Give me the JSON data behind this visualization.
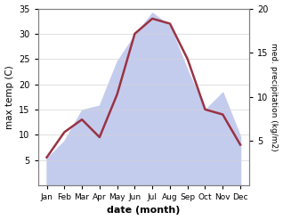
{
  "months": [
    "Jan",
    "Feb",
    "Mar",
    "Apr",
    "May",
    "Jun",
    "Jul",
    "Aug",
    "Sep",
    "Oct",
    "Nov",
    "Dec"
  ],
  "max_temp": [
    5.5,
    10.5,
    13.0,
    9.5,
    18.0,
    30.0,
    33.0,
    32.0,
    25.0,
    15.0,
    14.0,
    8.0
  ],
  "precipitation": [
    3.0,
    5.0,
    8.5,
    9.0,
    14.0,
    17.0,
    19.5,
    18.0,
    13.0,
    8.5,
    10.5,
    5.5
  ],
  "temp_color": "#993344",
  "precip_fill_color": "#c4ccee",
  "temp_ylim": [
    0,
    35
  ],
  "precip_ylim": [
    0,
    20
  ],
  "temp_yticks": [
    5,
    10,
    15,
    20,
    25,
    30,
    35
  ],
  "precip_yticks": [
    5,
    10,
    15,
    20
  ],
  "xlabel": "date (month)",
  "ylabel_left": "max temp (C)",
  "ylabel_right": "med. precipitation (kg/m2)",
  "figsize": [
    3.18,
    2.47
  ],
  "dpi": 100
}
